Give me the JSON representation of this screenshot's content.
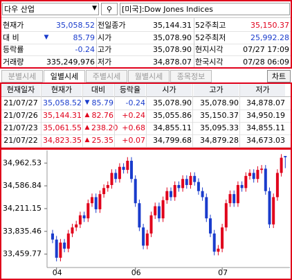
{
  "header": {
    "stock": "다우 산업",
    "market": "[미국]:Dow Jones Indices"
  },
  "quote": {
    "rows": [
      [
        "현재가",
        "",
        "35,058.52",
        "전일종가",
        "35,144.31",
        "52주최고",
        "35,150.37"
      ],
      [
        "대 비",
        "▼",
        "85.79",
        "시가",
        "35,078.90",
        "52주최저",
        "25,992.28"
      ],
      [
        "등락률",
        "",
        "-0.24",
        "고가",
        "35,078.90",
        "현지시각",
        "07/27 17:09"
      ],
      [
        "거래량",
        "",
        "335,249,976",
        "저가",
        "34,878.07",
        "한국시각",
        "07/28 06:09"
      ]
    ],
    "colors": [
      [
        "#000",
        "#1a3ccc",
        "#1a3ccc",
        "#000",
        "#000",
        "#000",
        "#e0001b"
      ],
      [
        "#000",
        "#1a3ccc",
        "#1a3ccc",
        "#000",
        "#000",
        "#000",
        "#1a3ccc"
      ],
      [
        "#000",
        "#000",
        "#1a3ccc",
        "#000",
        "#000",
        "#000",
        "#000"
      ],
      [
        "#000",
        "#000",
        "#000",
        "#000",
        "#000",
        "#000",
        "#000"
      ]
    ]
  },
  "tabs": [
    "분별시세",
    "일별시세",
    "주별시세",
    "월별시세",
    "종목정보"
  ],
  "active_tab": 1,
  "chart_button": "차트",
  "table": {
    "header": [
      "현재일자",
      "현재가",
      "대비",
      "등락율",
      "시가",
      "고가",
      "저가"
    ],
    "rows": [
      [
        "21/07/27",
        "35,058.52",
        "▼",
        "85.79",
        "-0.24",
        "35,078.90",
        "35,078.90",
        "34,878.07"
      ],
      [
        "21/07/26",
        "35,144.31",
        "▲",
        "82.76",
        "+0.24",
        "35,055.86",
        "35,150.37",
        "34,950.19"
      ],
      [
        "21/07/23",
        "35,061.55",
        "▲",
        "238.20",
        "+0.68",
        "34,855.11",
        "35,095.33",
        "34,855.11"
      ],
      [
        "21/07/22",
        "34,823.35",
        "▲",
        "25.35",
        "+0.07",
        "34,799.68",
        "34,879.28",
        "34,673.03"
      ]
    ],
    "row_colors": [
      "#1a3ccc",
      "#e0001b",
      "#e0001b",
      "#e0001b"
    ]
  },
  "chart_data": {
    "type": "candlestick",
    "up_color": "#e0001b",
    "down_color": "#1a3ccc",
    "ylim": [
      33250,
      35160
    ],
    "yticks": [
      {
        "value": 34962.53,
        "label": "34,962.53"
      },
      {
        "value": 34586.84,
        "label": "34,586.84"
      },
      {
        "value": 34211.15,
        "label": "34,211.15"
      },
      {
        "value": 33835.46,
        "label": "33,835.46"
      },
      {
        "value": 33459.77,
        "label": "33,459.77"
      }
    ],
    "xlabels": [
      {
        "index": 1,
        "label": "04"
      },
      {
        "index": 21,
        "label": "06"
      },
      {
        "index": 43,
        "label": "07"
      }
    ],
    "candles": [
      [
        33800,
        33860,
        33640,
        33700
      ],
      [
        33700,
        33760,
        33340,
        33400
      ],
      [
        33400,
        33710,
        33340,
        33650
      ],
      [
        33650,
        33710,
        33490,
        33550
      ],
      [
        33550,
        33860,
        33490,
        33800
      ],
      [
        33800,
        33960,
        33740,
        33900
      ],
      [
        33900,
        34010,
        33840,
        33950
      ],
      [
        33950,
        34160,
        33890,
        34100
      ],
      [
        34100,
        34160,
        33990,
        34050
      ],
      [
        34050,
        34360,
        33990,
        34300
      ],
      [
        34300,
        34460,
        34240,
        34400
      ],
      [
        34400,
        34460,
        34140,
        34200
      ],
      [
        34200,
        34510,
        34140,
        34450
      ],
      [
        34450,
        34610,
        34390,
        34550
      ],
      [
        34550,
        34660,
        34490,
        34600
      ],
      [
        34600,
        34860,
        34540,
        34800
      ],
      [
        34800,
        34860,
        34640,
        34700
      ],
      [
        34700,
        34960,
        34640,
        34900
      ],
      [
        34900,
        34960,
        34790,
        34850
      ],
      [
        34850,
        35060,
        34790,
        35000
      ],
      [
        35000,
        35060,
        34640,
        34700
      ],
      [
        34700,
        34760,
        34240,
        34300
      ],
      [
        34300,
        34360,
        33840,
        33900
      ],
      [
        33900,
        33960,
        33540,
        33600
      ],
      [
        33600,
        33860,
        33540,
        33800
      ],
      [
        33800,
        34160,
        33740,
        34100
      ],
      [
        34100,
        34310,
        34040,
        34250
      ],
      [
        34250,
        34310,
        33990,
        34050
      ],
      [
        34050,
        34410,
        33990,
        34350
      ],
      [
        34350,
        34560,
        34290,
        34500
      ],
      [
        34500,
        34560,
        34340,
        34400
      ],
      [
        34400,
        34660,
        34340,
        34600
      ],
      [
        34600,
        34660,
        34490,
        34550
      ],
      [
        34550,
        34760,
        34490,
        34700
      ],
      [
        34700,
        34760,
        34540,
        34600
      ],
      [
        34600,
        34810,
        34540,
        34750
      ],
      [
        34750,
        34810,
        34590,
        34650
      ],
      [
        34650,
        34710,
        34440,
        34500
      ],
      [
        34500,
        34560,
        34340,
        34400
      ],
      [
        34400,
        34460,
        33990,
        34050
      ],
      [
        34050,
        34110,
        33740,
        33800
      ],
      [
        33800,
        33860,
        33440,
        33500
      ],
      [
        33500,
        33610,
        33440,
        33550
      ],
      [
        33550,
        33960,
        33490,
        33900
      ],
      [
        33900,
        34360,
        33840,
        34300
      ],
      [
        34300,
        34510,
        34240,
        34450
      ],
      [
        34450,
        34510,
        34240,
        34300
      ],
      [
        34300,
        34660,
        34240,
        34600
      ],
      [
        34600,
        34660,
        34490,
        34550
      ],
      [
        34550,
        34810,
        34490,
        34750
      ],
      [
        34750,
        34860,
        34690,
        34800
      ],
      [
        34800,
        34860,
        34640,
        34700
      ],
      [
        34700,
        34910,
        34640,
        34850
      ],
      [
        34850,
        34930,
        34790,
        34870
      ],
      [
        34870,
        34930,
        34440,
        34500
      ],
      [
        34500,
        34560,
        33890,
        33950
      ],
      [
        33950,
        34460,
        33890,
        34400
      ],
      [
        34400,
        34860,
        34340,
        34800
      ],
      [
        34800,
        35110,
        34740,
        35050
      ],
      [
        35078.9,
        35078.9,
        34878.07,
        35058.52
      ]
    ]
  }
}
